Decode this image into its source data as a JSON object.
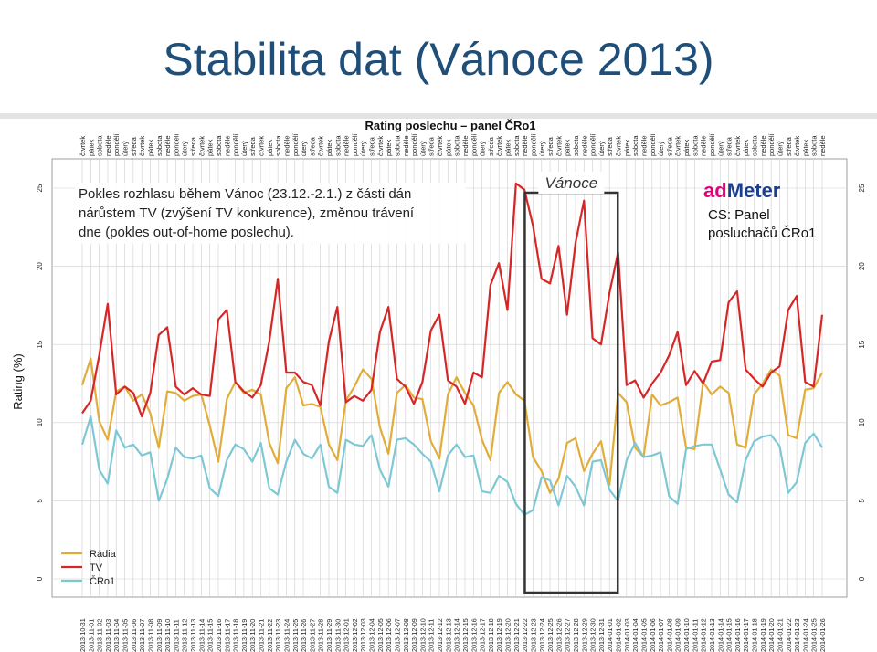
{
  "slide_title": "Stabilita dat (Vánoce 2013)",
  "note_lines": [
    "Pokles rozhlasu během Vánoc (23.12.-2.1.) z části dán",
    "nárůstem TV (zvýšení TV konkurence), změnou trávení",
    "dne (pokles out-of-home poslechu)."
  ],
  "vanoce_label": "Vánoce",
  "logo": {
    "ad": "ad",
    "meter": "Meter"
  },
  "cs_panel": {
    "line1": "CS: Panel",
    "line2": "posluchačů ČRo1"
  },
  "colors": {
    "radia": "#e1ad3a",
    "tv": "#d62728",
    "cro1": "#7ec8d6",
    "title": "#1f4e79",
    "box": "#333333"
  },
  "chart_data": {
    "type": "line",
    "title": "Rating poslechu – panel ČRo1",
    "ylabel": "Rating (%)",
    "ylim": [
      0,
      25
    ],
    "yticks": [
      0,
      5,
      10,
      15,
      20,
      25
    ],
    "grid": true,
    "legend_position": "bottom-left",
    "highlight": {
      "label": "Vánoce",
      "from": "2013-12-23",
      "to": "2014-01-01"
    },
    "x": [
      "2013-10-31",
      "2013-11-01",
      "2013-11-02",
      "2013-11-03",
      "2013-11-04",
      "2013-11-05",
      "2013-11-06",
      "2013-11-07",
      "2013-11-08",
      "2013-11-09",
      "2013-11-10",
      "2013-11-11",
      "2013-11-12",
      "2013-11-13",
      "2013-11-14",
      "2013-11-15",
      "2013-11-16",
      "2013-11-17",
      "2013-11-18",
      "2013-11-19",
      "2013-11-20",
      "2013-11-21",
      "2013-11-22",
      "2013-11-23",
      "2013-11-24",
      "2013-11-25",
      "2013-11-26",
      "2013-11-27",
      "2013-11-28",
      "2013-11-29",
      "2013-11-30",
      "2013-12-01",
      "2013-12-02",
      "2013-12-03",
      "2013-12-04",
      "2013-12-05",
      "2013-12-06",
      "2013-12-07",
      "2013-12-08",
      "2013-12-09",
      "2013-12-10",
      "2013-12-11",
      "2013-12-12",
      "2013-12-13",
      "2013-12-14",
      "2013-12-15",
      "2013-12-16",
      "2013-12-17",
      "2013-12-18",
      "2013-12-19",
      "2013-12-20",
      "2013-12-21",
      "2013-12-22",
      "2013-12-23",
      "2013-12-24",
      "2013-12-25",
      "2013-12-26",
      "2013-12-27",
      "2013-12-28",
      "2013-12-29",
      "2013-12-30",
      "2013-12-31",
      "2014-01-01",
      "2014-01-02",
      "2014-01-03",
      "2014-01-04",
      "2014-01-05",
      "2014-01-06",
      "2014-01-07",
      "2014-01-08",
      "2014-01-09",
      "2014-01-10",
      "2014-01-11",
      "2014-01-12",
      "2014-01-13",
      "2014-01-14",
      "2014-01-15",
      "2014-01-16",
      "2014-01-17",
      "2014-01-18",
      "2014-01-19",
      "2014-01-20",
      "2014-01-21",
      "2014-01-22",
      "2014-01-23",
      "2014-01-24",
      "2014-01-25",
      "2014-01-26"
    ],
    "weekdays": [
      "čtvrtek",
      "pátek",
      "sobota",
      "neděle",
      "pondělí",
      "úterý",
      "středa"
    ],
    "series": [
      {
        "name": "Rádia",
        "values": [
          12.4,
          14.1,
          10.1,
          8.9,
          12.0,
          12.3,
          11.4,
          11.8,
          10.6,
          8.4,
          12.0,
          11.9,
          11.4,
          11.7,
          11.8,
          9.8,
          7.5,
          11.5,
          12.6,
          11.9,
          12.1,
          11.8,
          8.7,
          7.4,
          12.2,
          12.9,
          11.1,
          11.2,
          11.0,
          8.6,
          7.6,
          11.4,
          12.3,
          13.4,
          12.8,
          9.7,
          8.0,
          11.9,
          12.4,
          11.6,
          11.5,
          8.8,
          7.7,
          11.8,
          12.9,
          11.9,
          11.1,
          8.9,
          7.6,
          11.9,
          12.6,
          11.8,
          11.4,
          7.8,
          6.9,
          5.5,
          6.4,
          8.7,
          9.0,
          6.9,
          8.0,
          8.8,
          6.0,
          11.9,
          11.3,
          8.4,
          7.8,
          11.8,
          11.1,
          11.3,
          11.6,
          8.4,
          8.3,
          12.6,
          11.8,
          12.3,
          11.9,
          8.6,
          8.4,
          11.8,
          12.5,
          13.4,
          13.0,
          9.2,
          9.0,
          12.1,
          12.2,
          13.2
        ]
      },
      {
        "name": "TV",
        "values": [
          10.6,
          11.4,
          14.3,
          17.6,
          11.8,
          12.3,
          11.9,
          10.4,
          11.9,
          15.6,
          16.1,
          12.3,
          11.8,
          12.2,
          11.8,
          11.7,
          16.6,
          17.2,
          12.6,
          12.0,
          11.6,
          12.4,
          15.2,
          19.2,
          13.2,
          13.2,
          12.6,
          12.4,
          11.1,
          15.2,
          17.4,
          11.3,
          11.7,
          11.4,
          12.1,
          15.8,
          17.4,
          12.8,
          12.3,
          11.2,
          12.6,
          15.9,
          16.9,
          12.7,
          12.3,
          11.2,
          13.2,
          12.9,
          18.8,
          20.2,
          17.2,
          25.3,
          24.9,
          22.6,
          19.2,
          18.9,
          21.3,
          16.9,
          21.5,
          24.2,
          15.4,
          15.0,
          18.3,
          20.9,
          12.4,
          12.7,
          11.6,
          12.5,
          13.2,
          14.3,
          15.8,
          12.4,
          13.3,
          12.5,
          13.9,
          14.0,
          17.7,
          18.4,
          13.4,
          12.8,
          12.3,
          13.2,
          13.6,
          17.2,
          18.1,
          12.6,
          12.3,
          16.9
        ]
      },
      {
        "name": "ČRo1",
        "values": [
          8.6,
          10.4,
          7.0,
          6.1,
          9.5,
          8.4,
          8.6,
          7.9,
          8.1,
          5.0,
          6.4,
          8.4,
          7.8,
          7.7,
          7.9,
          5.8,
          5.3,
          7.6,
          8.6,
          8.3,
          7.5,
          8.7,
          5.8,
          5.4,
          7.5,
          8.9,
          8.0,
          7.7,
          8.6,
          5.9,
          5.5,
          8.9,
          8.6,
          8.5,
          9.2,
          7.0,
          5.9,
          8.9,
          9.0,
          8.6,
          8.0,
          7.5,
          5.6,
          7.9,
          8.6,
          7.8,
          7.9,
          5.6,
          5.5,
          6.6,
          6.2,
          4.8,
          4.1,
          4.4,
          6.5,
          6.3,
          4.7,
          6.6,
          5.9,
          4.7,
          7.5,
          7.6,
          5.7,
          5.0,
          7.6,
          8.7,
          7.8,
          7.9,
          8.1,
          5.3,
          4.8,
          8.3,
          8.5,
          8.6,
          8.6,
          7.0,
          5.4,
          4.9,
          7.6,
          8.8,
          9.1,
          9.2,
          8.5,
          5.5,
          6.2,
          8.7,
          9.3,
          8.4
        ]
      }
    ]
  }
}
